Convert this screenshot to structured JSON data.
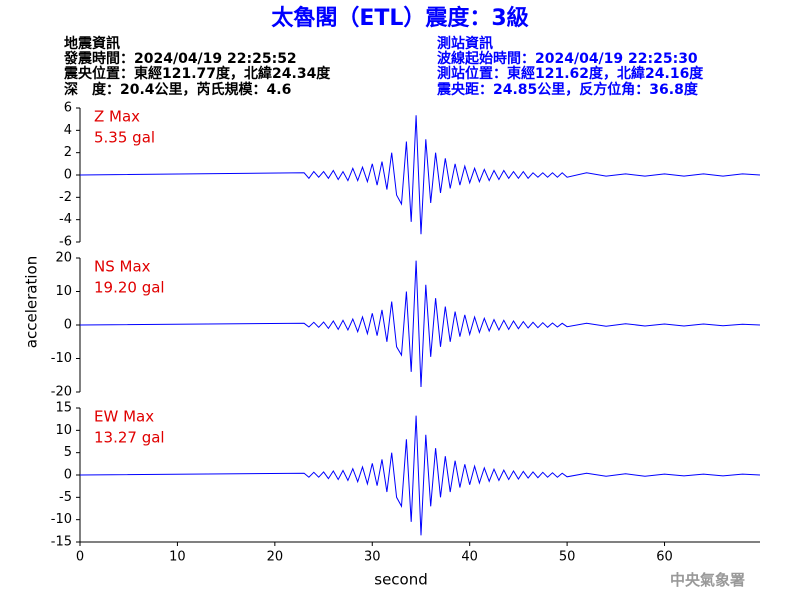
{
  "title": "太魯閣（ETL）震度：3級",
  "event_info": [
    "地震資訊",
    "發震時間：2024/04/19 22:25:52",
    "震央位置：東經121.77度，北緯24.34度",
    "深　度：20.4公里，芮氏規模：4.6"
  ],
  "station_info": [
    "測站資訊",
    "波線起始時間：2024/04/19 22:25:30",
    "測站位置：東經121.62度，北緯24.16度",
    "震央距：24.85公里，反方位角：36.8度"
  ],
  "ylabel": "acceleration",
  "xlabel": "second",
  "credit": "中央氣象署",
  "chart_data": [
    {
      "type": "line",
      "annotation": "Z Max",
      "max_label": "5.35 gal",
      "color": "#0000ff",
      "xlim": [
        0,
        69.8
      ],
      "ylim": [
        -6,
        6
      ],
      "yticks": [
        -6,
        -4,
        -2,
        0,
        2,
        4,
        6
      ],
      "x": [
        0,
        23,
        23.5,
        24,
        24.5,
        25,
        25.5,
        26,
        26.5,
        27,
        27.5,
        28,
        28.5,
        29,
        29.5,
        30,
        30.5,
        31,
        31.5,
        32,
        32.5,
        33,
        33.5,
        34,
        34.5,
        35,
        35.5,
        36,
        36.5,
        37,
        37.5,
        38,
        38.5,
        39,
        39.5,
        40,
        40.5,
        41,
        41.5,
        42,
        42.5,
        43,
        43.5,
        44,
        44.5,
        45,
        45.5,
        46,
        46.5,
        47,
        47.5,
        48,
        48.5,
        49,
        49.5,
        50,
        52,
        54,
        56,
        58,
        60,
        62,
        64,
        66,
        68,
        69.8
      ],
      "values": [
        0,
        0.2,
        -0.3,
        0.3,
        -0.2,
        0.3,
        -0.3,
        0.4,
        -0.4,
        0.3,
        -0.5,
        0.6,
        -0.5,
        0.7,
        -0.6,
        1.0,
        -0.9,
        1.2,
        -1.3,
        2.0,
        -1.8,
        -2.6,
        3.0,
        -4.2,
        5.35,
        -5.3,
        3.2,
        -2.5,
        2.0,
        -1.6,
        1.5,
        -1.2,
        1.0,
        -0.9,
        0.8,
        -0.7,
        0.6,
        -0.6,
        0.5,
        -0.5,
        0.4,
        -0.4,
        0.4,
        -0.3,
        0.3,
        -0.3,
        0.3,
        -0.3,
        0.2,
        -0.2,
        0.2,
        -0.2,
        0.2,
        -0.2,
        0.2,
        -0.2,
        0.2,
        -0.1,
        0.1,
        -0.1,
        0.1,
        -0.1,
        0.1,
        -0.1,
        0.1,
        0
      ]
    },
    {
      "type": "line",
      "annotation": "NS Max",
      "max_label": "19.20 gal",
      "color": "#0000ff",
      "xlim": [
        0,
        69.8
      ],
      "ylim": [
        -20,
        20
      ],
      "yticks": [
        -20,
        -10,
        0,
        10,
        20
      ],
      "x": [
        0,
        23,
        23.5,
        24,
        24.5,
        25,
        25.5,
        26,
        26.5,
        27,
        27.5,
        28,
        28.5,
        29,
        29.5,
        30,
        30.5,
        31,
        31.5,
        32,
        32.5,
        33,
        33.5,
        34,
        34.5,
        35,
        35.5,
        36,
        36.5,
        37,
        37.5,
        38,
        38.5,
        39,
        39.5,
        40,
        40.5,
        41,
        41.5,
        42,
        42.5,
        43,
        43.5,
        44,
        44.5,
        45,
        45.5,
        46,
        46.5,
        47,
        47.5,
        48,
        48.5,
        49,
        49.5,
        50,
        52,
        54,
        56,
        58,
        60,
        62,
        64,
        66,
        68,
        69.8
      ],
      "values": [
        0,
        0.5,
        -0.6,
        0.8,
        -0.7,
        0.9,
        -1.0,
        1.2,
        -1.3,
        1.4,
        -1.5,
        1.8,
        -2.0,
        2.4,
        -2.6,
        3.5,
        -3.2,
        4.5,
        -5.0,
        7.0,
        -6.5,
        -9.0,
        10.0,
        -14.0,
        19.2,
        -18.5,
        12.0,
        -9.5,
        8.0,
        -6.5,
        5.5,
        -5.0,
        4.0,
        -3.5,
        3.0,
        -2.8,
        2.4,
        -2.2,
        2.0,
        -1.8,
        1.6,
        -1.5,
        1.4,
        -1.3,
        1.2,
        -1.1,
        1.0,
        -0.9,
        0.8,
        -0.8,
        0.7,
        -0.7,
        0.6,
        -0.6,
        0.5,
        -0.5,
        0.5,
        -0.4,
        0.4,
        -0.3,
        0.3,
        -0.3,
        0.3,
        -0.2,
        0.2,
        0
      ]
    },
    {
      "type": "line",
      "annotation": "EW Max",
      "max_label": "13.27 gal",
      "color": "#0000ff",
      "xlim": [
        0,
        69.8
      ],
      "ylim": [
        -15,
        15
      ],
      "yticks": [
        -15,
        -10,
        -5,
        0,
        5,
        10,
        15
      ],
      "xticks": [
        0,
        10,
        20,
        30,
        40,
        50,
        60
      ],
      "x": [
        0,
        23,
        23.5,
        24,
        24.5,
        25,
        25.5,
        26,
        26.5,
        27,
        27.5,
        28,
        28.5,
        29,
        29.5,
        30,
        30.5,
        31,
        31.5,
        32,
        32.5,
        33,
        33.5,
        34,
        34.5,
        35,
        35.5,
        36,
        36.5,
        37,
        37.5,
        38,
        38.5,
        39,
        39.5,
        40,
        40.5,
        41,
        41.5,
        42,
        42.5,
        43,
        43.5,
        44,
        44.5,
        45,
        45.5,
        46,
        46.5,
        47,
        47.5,
        48,
        48.5,
        49,
        49.5,
        50,
        52,
        54,
        56,
        58,
        60,
        62,
        64,
        66,
        68,
        69.8
      ],
      "values": [
        0,
        0.4,
        -0.5,
        0.6,
        -0.5,
        0.7,
        -0.8,
        0.9,
        -1.0,
        1.0,
        -1.2,
        1.4,
        -1.5,
        1.8,
        -2.0,
        2.6,
        -2.4,
        3.5,
        -3.8,
        5.0,
        -5.0,
        -7.0,
        8.0,
        -10.5,
        13.27,
        -13.5,
        9.0,
        -7.0,
        6.0,
        -5.0,
        4.2,
        -3.8,
        3.2,
        -2.8,
        2.4,
        -2.2,
        2.0,
        -1.8,
        1.6,
        -1.4,
        1.3,
        -1.2,
        1.1,
        -1.0,
        0.9,
        -0.9,
        0.8,
        -0.7,
        0.7,
        -0.6,
        0.6,
        -0.5,
        0.5,
        -0.5,
        0.4,
        -0.4,
        0.4,
        -0.3,
        0.3,
        -0.3,
        0.2,
        -0.2,
        0.2,
        -0.2,
        0.2,
        0
      ]
    }
  ]
}
